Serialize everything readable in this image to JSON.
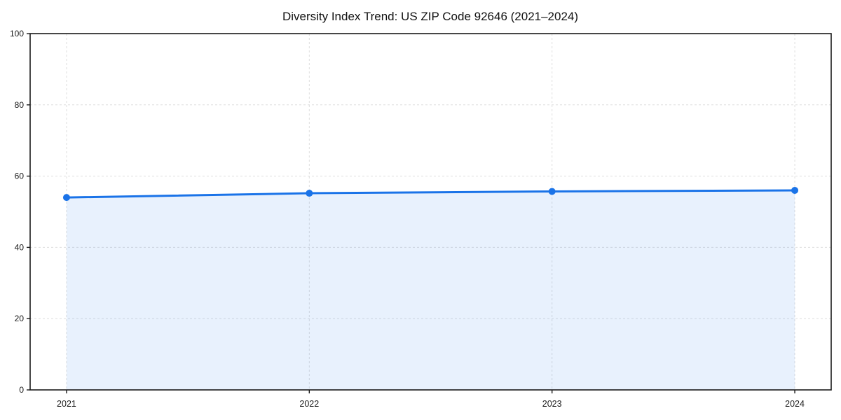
{
  "chart_data": {
    "type": "area",
    "title": "Diversity Index Trend: US ZIP Code 92646 (2021–2024)",
    "x": [
      2021,
      2022,
      2023,
      2024
    ],
    "x_tick_labels": [
      "2021",
      "2022",
      "2023",
      "2024"
    ],
    "series": [
      {
        "name": "Diversity Index",
        "values": [
          54.0,
          55.2,
          55.7,
          56.0
        ]
      }
    ],
    "xlabel": "",
    "ylabel": "",
    "ylim": [
      0,
      100
    ],
    "y_ticks": [
      0,
      20,
      40,
      60,
      80,
      100
    ],
    "x_margin_frac": 0.05,
    "grid": true,
    "legend_position": "none",
    "line_color": "#1a73e8",
    "marker_color": "#1a73e8",
    "fill_color": "#1a73e8",
    "fill_opacity": 0.1,
    "grid_color": "#dedede",
    "axis_color": "#1a1a1a",
    "text_color": "#1a1a1a",
    "background_color": "#ffffff"
  }
}
